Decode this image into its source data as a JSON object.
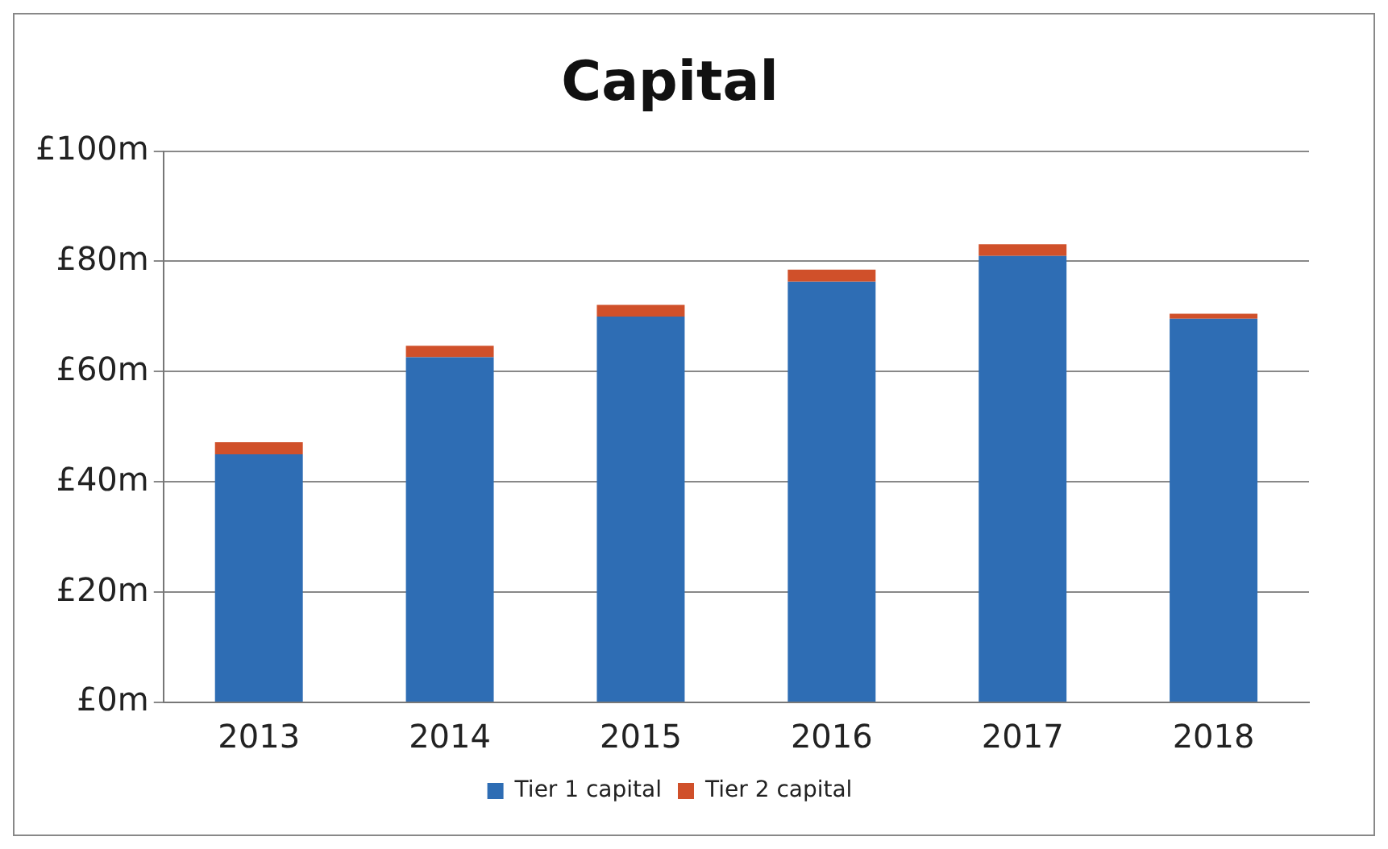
{
  "chart_data": {
    "type": "bar",
    "title": "Capital",
    "categories": [
      "2013",
      "2014",
      "2015",
      "2016",
      "2017",
      "2018"
    ],
    "series": [
      {
        "name": "Tier 1 capital",
        "color": "#2e6db4",
        "values": [
          45,
          62.6,
          70,
          76.3,
          81,
          69.6
        ]
      },
      {
        "name": "Tier 2 capital",
        "color": "#d0502a",
        "values": [
          2.2,
          2.1,
          2.1,
          2.2,
          2.1,
          0.9
        ]
      }
    ],
    "stacked": true,
    "ylim": [
      0,
      100
    ],
    "yticks": [
      {
        "value": 0,
        "label": "£0m"
      },
      {
        "value": 20,
        "label": "£20m"
      },
      {
        "value": 40,
        "label": "£40m"
      },
      {
        "value": 60,
        "label": "£60m"
      },
      {
        "value": 80,
        "label": "£80m"
      },
      {
        "value": 100,
        "label": "£100m"
      }
    ],
    "grid": "y",
    "legend": "bottom"
  }
}
